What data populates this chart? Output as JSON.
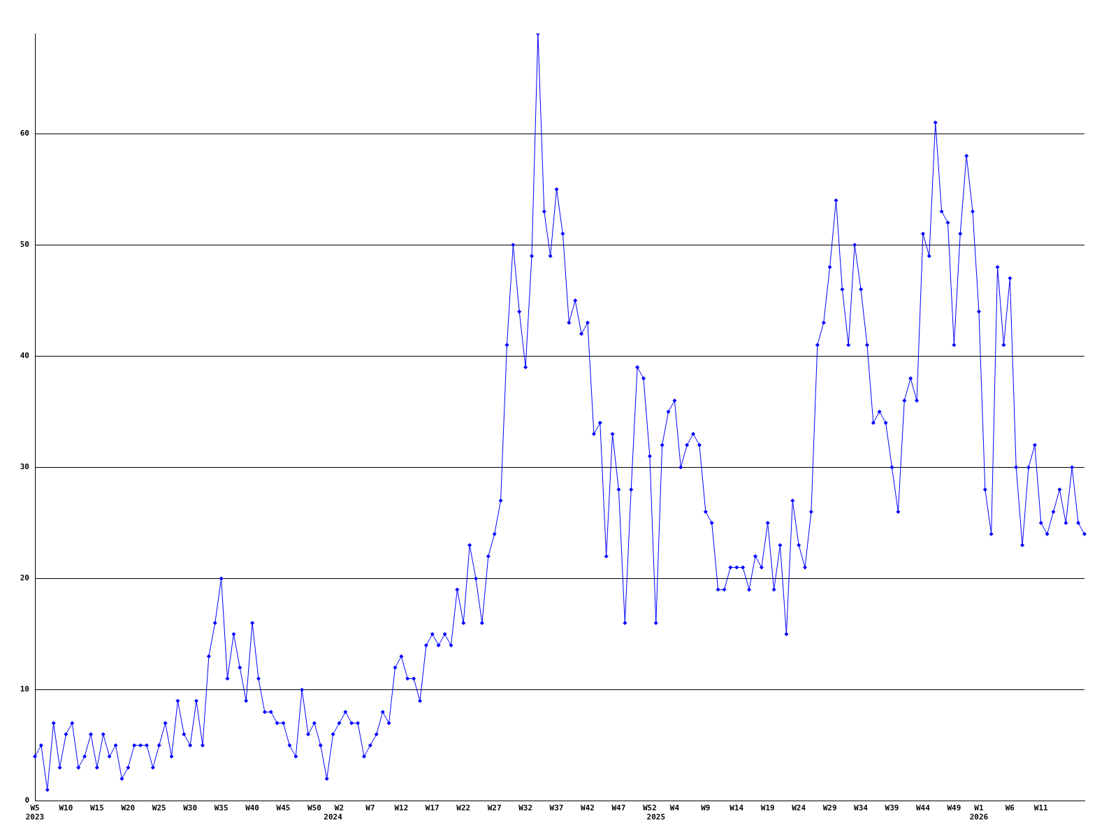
{
  "chart_data": {
    "type": "line",
    "categories": [
      "W5\n2023",
      null,
      null,
      null,
      null,
      "W10",
      null,
      null,
      null,
      null,
      "W15",
      null,
      null,
      null,
      null,
      "W20",
      null,
      null,
      null,
      null,
      "W25",
      null,
      null,
      null,
      null,
      "W30",
      null,
      null,
      null,
      null,
      "W35",
      null,
      null,
      null,
      null,
      "W40",
      null,
      null,
      null,
      null,
      "W45",
      null,
      null,
      null,
      null,
      "W50",
      null,
      null,
      "\n2024",
      "W2",
      null,
      null,
      null,
      null,
      "W7",
      null,
      null,
      null,
      null,
      "W12",
      null,
      null,
      null,
      null,
      "W17",
      null,
      null,
      null,
      null,
      "W22",
      null,
      null,
      null,
      null,
      "W27",
      null,
      null,
      null,
      null,
      "W32",
      null,
      null,
      null,
      null,
      "W37",
      null,
      null,
      null,
      null,
      "W42",
      null,
      null,
      null,
      null,
      "W47",
      null,
      null,
      null,
      null,
      "W52",
      "\n2025",
      null,
      null,
      "W4",
      null,
      null,
      null,
      null,
      "W9",
      null,
      null,
      null,
      null,
      "W14",
      null,
      null,
      null,
      null,
      "W19",
      null,
      null,
      null,
      null,
      "W24",
      null,
      null,
      null,
      null,
      "W29",
      null,
      null,
      null,
      null,
      "W34",
      null,
      null,
      null,
      null,
      "W39",
      null,
      null,
      null,
      null,
      "W44",
      null,
      null,
      null,
      null,
      "W49",
      null,
      null,
      null,
      "W1\n2026",
      null,
      null,
      null,
      null,
      "W6",
      null,
      null,
      null,
      null,
      "W11",
      null,
      null,
      null,
      null,
      null,
      null,
      null
    ],
    "series": [
      {
        "color": "#0000ff",
        "values": [
          4,
          5,
          1,
          7,
          3,
          6,
          7,
          3,
          4,
          6,
          3,
          6,
          4,
          5,
          2,
          3,
          5,
          5,
          5,
          3,
          5,
          7,
          4,
          9,
          6,
          5,
          9,
          5,
          13,
          16,
          20,
          11,
          15,
          12,
          9,
          16,
          11,
          8,
          8,
          7,
          7,
          5,
          4,
          10,
          6,
          7,
          5,
          2,
          6,
          7,
          8,
          7,
          7,
          4,
          5,
          6,
          8,
          7,
          12,
          13,
          11,
          11,
          9,
          14,
          15,
          14,
          15,
          14,
          19,
          16,
          23,
          20,
          16,
          22,
          24,
          27,
          41,
          50,
          44,
          39,
          49,
          69,
          53,
          49,
          55,
          51,
          43,
          45,
          42,
          43,
          33,
          34,
          22,
          33,
          28,
          16,
          28,
          39,
          38,
          31,
          16,
          32,
          35,
          36,
          30,
          32,
          33,
          32,
          26,
          25,
          19,
          19,
          21,
          21,
          21,
          19,
          22,
          21,
          25,
          19,
          23,
          15,
          27,
          23,
          21,
          26,
          41,
          43,
          48,
          54,
          46,
          41,
          50,
          46,
          41,
          34,
          35,
          34,
          30,
          26,
          36,
          38,
          36,
          51,
          49,
          61,
          53,
          52,
          41,
          51,
          58,
          53,
          44,
          28,
          24,
          48,
          41,
          47,
          30,
          23,
          30,
          32,
          25,
          24,
          26,
          28,
          25,
          30,
          25,
          24
        ]
      }
    ],
    "ylim": [
      0,
      69
    ],
    "yticks": [
      0,
      10,
      20,
      30,
      40,
      50,
      60
    ],
    "grid": "y",
    "marker": "diamond",
    "line_style": "solid"
  }
}
